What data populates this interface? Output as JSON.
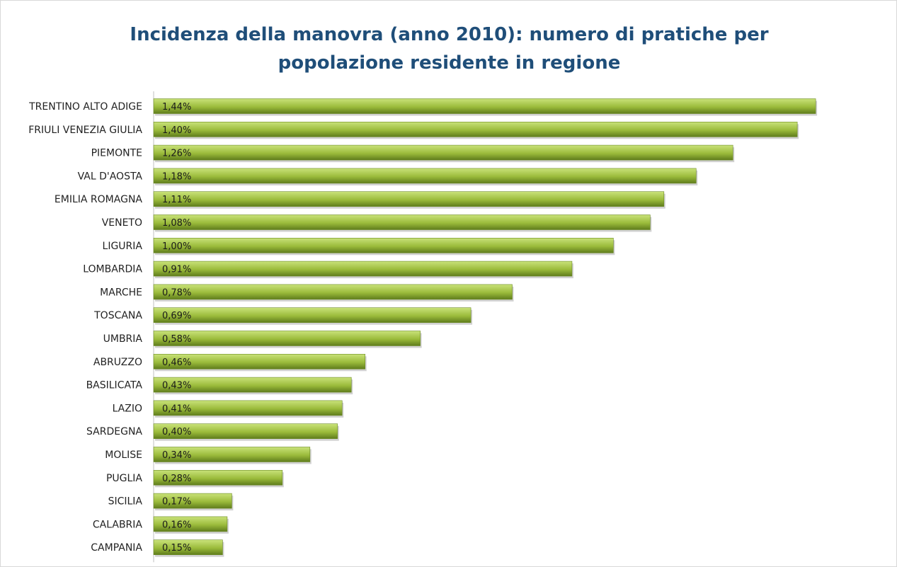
{
  "chart_data": {
    "type": "bar",
    "orientation": "horizontal",
    "title_lines": [
      "Incidenza della manovra (anno 2010): numero di pratiche per",
      "popolazione residente in regione"
    ],
    "categories": [
      "TRENTINO ALTO ADIGE",
      "FRIULI VENEZIA GIULIA",
      "PIEMONTE",
      "VAL D'AOSTA",
      "EMILIA ROMAGNA",
      "VENETO",
      "LIGURIA",
      "LOMBARDIA",
      "MARCHE",
      "TOSCANA",
      "UMBRIA",
      "ABRUZZO",
      "BASILICATA",
      "LAZIO",
      "SARDEGNA",
      "MOLISE",
      "PUGLIA",
      "SICILIA",
      "CALABRIA",
      "CAMPANIA"
    ],
    "values": [
      1.44,
      1.4,
      1.26,
      1.18,
      1.11,
      1.08,
      1.0,
      0.91,
      0.78,
      0.69,
      0.58,
      0.46,
      0.43,
      0.41,
      0.4,
      0.34,
      0.28,
      0.17,
      0.16,
      0.15
    ],
    "value_labels": [
      "1,44%",
      "1,40%",
      "1,26%",
      "1,18%",
      "1,11%",
      "1,08%",
      "1,00%",
      "0,91%",
      "0,78%",
      "0,69%",
      "0,58%",
      "0,46%",
      "0,43%",
      "0,41%",
      "0,40%",
      "0,34%",
      "0,28%",
      "0,17%",
      "0,16%",
      "0,15%"
    ],
    "unit": "%",
    "xlim": [
      0,
      1.6
    ],
    "grid": false,
    "legend": "none",
    "colors": {
      "bar_light": "#c9e27a",
      "bar_mid": "#9bbb3b",
      "bar_dark": "#5f7c1c",
      "title": "#1f4e79",
      "axis": "#bfbfbf"
    }
  }
}
